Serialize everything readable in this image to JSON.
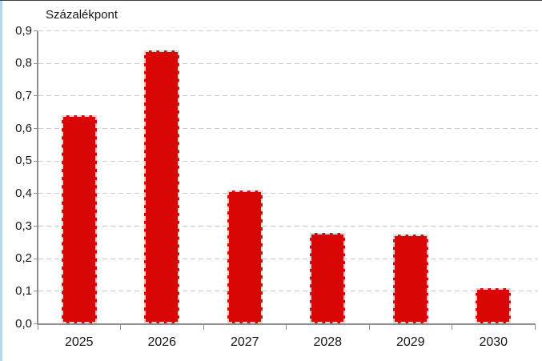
{
  "page": {
    "background": "#ffffff",
    "left_strip_color": "#b5dbeb",
    "top_line_color": "#3f3f3f"
  },
  "chart_data": {
    "type": "bar",
    "title": "Százalékpont",
    "categories": [
      "2025",
      "2026",
      "2027",
      "2028",
      "2029",
      "2030"
    ],
    "values": [
      0.64,
      0.84,
      0.41,
      0.28,
      0.275,
      0.11
    ],
    "ylabel": "Százalékpont",
    "xlabel": "",
    "ylim": [
      0,
      0.9
    ],
    "y_step": 0.1,
    "y_tick_labels": [
      "0,0",
      "0,1",
      "0,2",
      "0,3",
      "0,4",
      "0,5",
      "0,6",
      "0,7",
      "0,8",
      "0,9"
    ],
    "decimal_separator": ",",
    "grid": "horizontal-dashed",
    "legend_position": "none",
    "bar_color": "#d90606",
    "bar_border_style": "light-dashed",
    "axis_color": "#8f8f8f",
    "gridline_color": "#cacaca",
    "text_color": "#161616"
  }
}
